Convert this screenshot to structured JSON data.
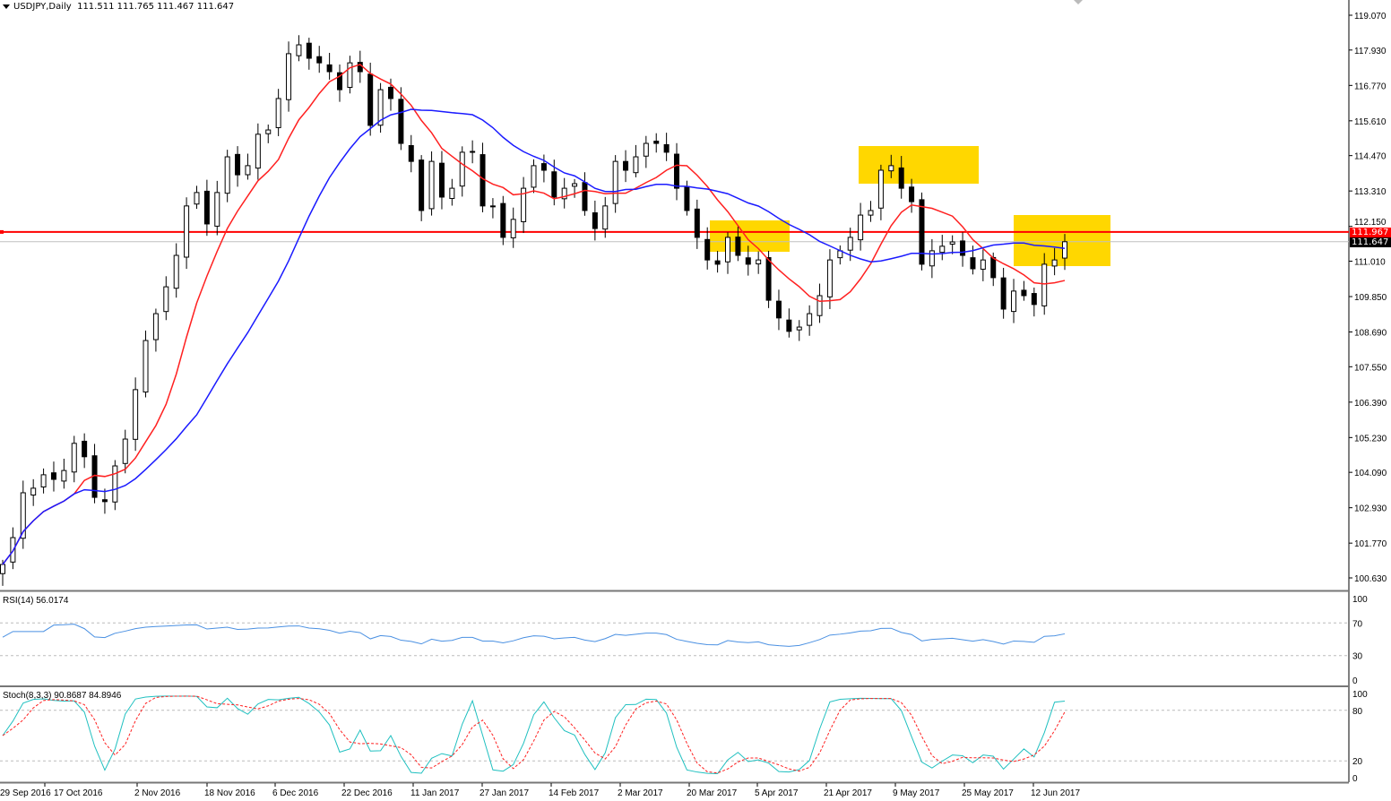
{
  "header": {
    "symbol": "USDJPY,Daily",
    "open": "111.511",
    "high": "111.765",
    "low": "111.467",
    "close": "111.647"
  },
  "price_labels": {
    "hline": "111.967",
    "bid": "111.647"
  },
  "rsi": {
    "label": "RSI(14) 56.0174",
    "levels": [
      "100",
      "70",
      "30",
      "0"
    ]
  },
  "stoch": {
    "label": "Stoch(8,3,3) 90.8687 84.8946",
    "levels": [
      "100",
      "80",
      "20",
      "0"
    ]
  },
  "colors": {
    "ma_fast": "#ff2020",
    "ma_slow": "#1a1aff",
    "hline": "#ff0000",
    "highlight": "#ffd700",
    "rsi": "#4a90e2",
    "stoch_main": "#20c0c0",
    "stoch_signal": "#ff2020"
  },
  "chart_data": {
    "type": "candlestick",
    "title": "USDJPY,Daily",
    "yaxis_ticks": [
      "119.070",
      "117.930",
      "116.770",
      "115.610",
      "114.470",
      "113.310",
      "112.150",
      "111.010",
      "109.850",
      "108.690",
      "107.550",
      "106.390",
      "105.230",
      "104.090",
      "102.930",
      "101.770",
      "100.630"
    ],
    "ylim": [
      100.63,
      119.07
    ],
    "xaxis_ticks": [
      "29 Sep 2016",
      "17 Oct 2016",
      "2 Nov 2016",
      "18 Nov 2016",
      "6 Dec 2016",
      "22 Dec 2016",
      "11 Jan 2017",
      "27 Jan 2017",
      "14 Feb 2017",
      "2 Mar 2017",
      "20 Mar 2017",
      "5 Apr 2017",
      "21 Apr 2017",
      "9 May 2017",
      "25 May 2017",
      "12 Jun 2017"
    ],
    "horizontal_line": 111.967,
    "closes": [
      101.07,
      101.95,
      103.42,
      103.57,
      104.01,
      103.86,
      104.15,
      105.04,
      104.6,
      103.27,
      103.13,
      104.3,
      105.18,
      106.8,
      108.41,
      109.29,
      110.17,
      111.2,
      112.82,
      113.26,
      112.23,
      113.26,
      114.43,
      113.84,
      114.14,
      115.17,
      115.31,
      116.34,
      117.81,
      118.1,
      117.66,
      117.51,
      117.22,
      116.63,
      117.51,
      117.22,
      115.46,
      116.63,
      116.34,
      114.87,
      114.28,
      112.67,
      114.28,
      113.11,
      113.4,
      114.58,
      114.58,
      112.82,
      112.82,
      111.79,
      112.38,
      113.4,
      114.14,
      113.99,
      113.11,
      113.4,
      113.55,
      112.67,
      112.08,
      112.82,
      114.28,
      113.99,
      114.43,
      114.87,
      114.87,
      114.58,
      113.4,
      112.67,
      111.79,
      111.05,
      110.91,
      111.79,
      111.2,
      110.91,
      111.05,
      109.73,
      109.15,
      108.71,
      108.85,
      109.29,
      109.88,
      111.05,
      111.35,
      111.79,
      112.52,
      112.67,
      113.99,
      114.14,
      113.4,
      112.96,
      110.91,
      111.35,
      111.5,
      111.64,
      111.2,
      110.76,
      111.05,
      110.47,
      109.44,
      110.03,
      109.88,
      109.59,
      110.91,
      111.05,
      111.647
    ]
  }
}
